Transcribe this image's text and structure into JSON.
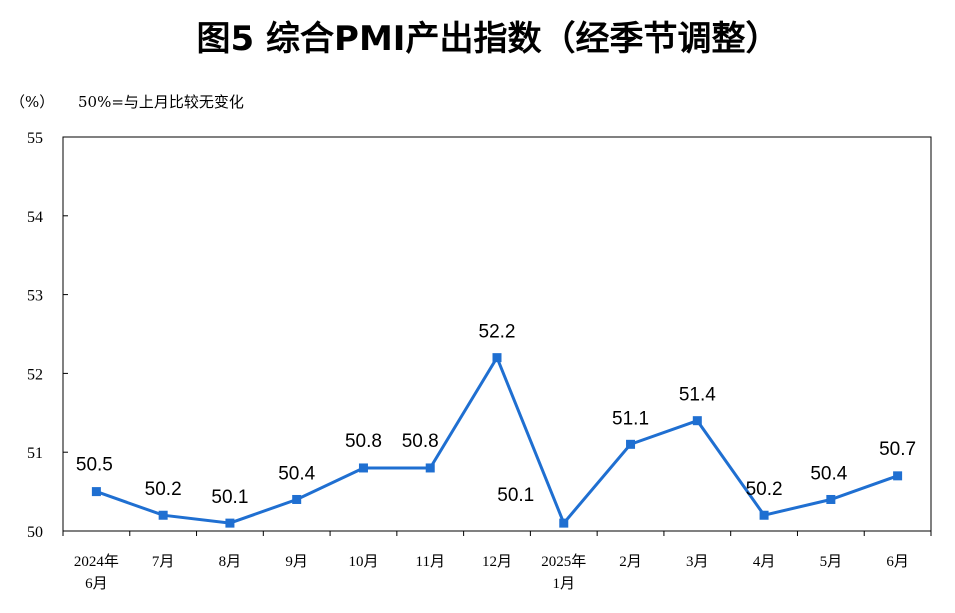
{
  "chart_data": {
    "type": "line",
    "title": "图5  综合PMI产出指数（经季节调整）",
    "unit_label": "（%）",
    "note": "50%=与上月比较无变化",
    "categories": [
      [
        "2024年",
        "6月"
      ],
      [
        "7月"
      ],
      [
        "8月"
      ],
      [
        "9月"
      ],
      [
        "10月"
      ],
      [
        "11月"
      ],
      [
        "12月"
      ],
      [
        "2025年",
        "1月"
      ],
      [
        "2月"
      ],
      [
        "3月"
      ],
      [
        "4月"
      ],
      [
        "5月"
      ],
      [
        "6月"
      ]
    ],
    "series": [
      {
        "name": "综合PMI产出指数",
        "values": [
          50.5,
          50.2,
          50.1,
          50.4,
          50.8,
          50.8,
          52.2,
          50.1,
          51.1,
          51.4,
          50.2,
          50.4,
          50.7
        ],
        "labels": [
          "50.5",
          "50.2",
          "50.1",
          "50.4",
          "50.8",
          "50.8",
          "52.2",
          "50.1",
          "51.1",
          "51.4",
          "50.2",
          "50.4",
          "50.7"
        ],
        "color": "#1f6fd1"
      }
    ],
    "ylim": [
      50,
      55
    ],
    "yticks": [
      "50",
      "51",
      "52",
      "53",
      "54",
      "55"
    ],
    "xlabel": "",
    "ylabel": "",
    "grid": false,
    "legend": "none"
  }
}
